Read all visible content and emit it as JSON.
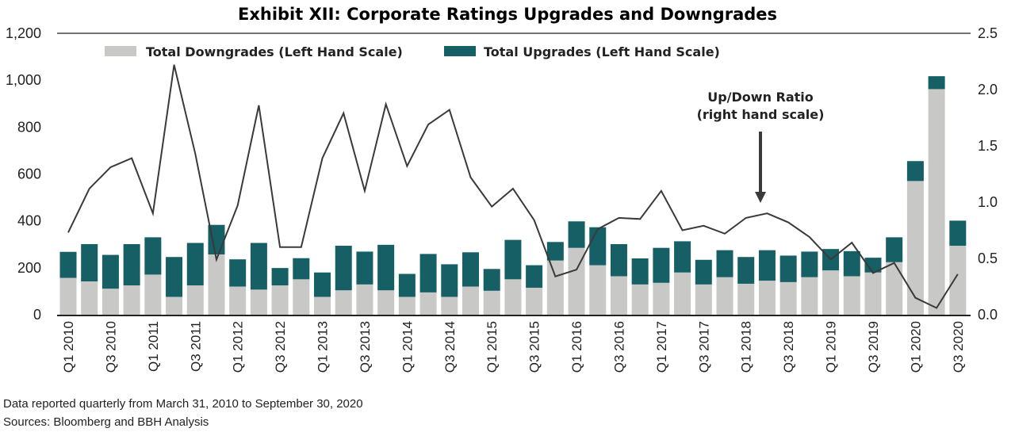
{
  "chart_data": {
    "type": "bar",
    "stacked": true,
    "title": "Exhibit XII: Corporate Ratings Upgrades and Downgrades",
    "categories": [
      "Q1 2010",
      "Q2 2010",
      "Q3 2010",
      "Q4 2010",
      "Q1 2011",
      "Q2 2011",
      "Q3 2011",
      "Q4 2011",
      "Q1 2012",
      "Q2 2012",
      "Q3 2012",
      "Q4 2012",
      "Q1 2013",
      "Q2 2013",
      "Q3 2013",
      "Q4 2013",
      "Q1 2014",
      "Q2 2014",
      "Q3 2014",
      "Q4 2014",
      "Q1 2015",
      "Q2 2015",
      "Q3 2015",
      "Q4 2015",
      "Q1 2016",
      "Q2 2016",
      "Q3 2016",
      "Q4 2016",
      "Q1 2017",
      "Q2 2017",
      "Q3 2017",
      "Q4 2017",
      "Q1 2018",
      "Q2 2018",
      "Q3 2018",
      "Q4 2018",
      "Q1 2019",
      "Q2 2019",
      "Q3 2019",
      "Q4 2019",
      "Q1 2020",
      "Q2 2020",
      "Q3 2020"
    ],
    "tick_labels": [
      "Q1 2010",
      "Q3 2010",
      "Q1 2011",
      "Q3 2011",
      "Q1 2012",
      "Q3 2012",
      "Q1 2013",
      "Q3 2013",
      "Q1 2014",
      "Q3 2014",
      "Q1 2015",
      "Q3 2015",
      "Q1 2016",
      "Q3 2016",
      "Q1 2017",
      "Q3 2017",
      "Q1 2018",
      "Q3 2018",
      "Q1 2019",
      "Q3 2019",
      "Q1 2020",
      "Q3 2020"
    ],
    "series": [
      {
        "name": "Total Downgrades (Left Hand Scale)",
        "axis": "left",
        "color": "#c8c8c6",
        "values": [
          157,
          142,
          111,
          125,
          171,
          76,
          125,
          257,
          120,
          107,
          125,
          151,
          76,
          104,
          129,
          104,
          76,
          95,
          76,
          120,
          102,
          151,
          115,
          231,
          285,
          211,
          164,
          129,
          136,
          180,
          129,
          160,
          132,
          145,
          139,
          160,
          189,
          164,
          180,
          224,
          570,
          962,
          294
        ]
      },
      {
        "name": "Total Upgrades (Left Hand Scale)",
        "axis": "left",
        "color": "#155f65",
        "values": [
          111,
          159,
          144,
          176,
          159,
          170,
          181,
          126,
          116,
          199,
          74,
          90,
          104,
          190,
          140,
          194,
          98,
          164,
          139,
          146,
          93,
          168,
          96,
          79,
          113,
          162,
          137,
          111,
          149,
          133,
          105,
          115,
          114,
          130,
          113,
          109,
          91,
          107,
          63,
          106,
          85,
          55,
          107
        ]
      },
      {
        "axis": "right",
        "type": "line",
        "color": "#3a3a3a",
        "values": [
          0.73,
          1.12,
          1.31,
          1.39,
          0.9,
          2.22,
          1.43,
          0.49,
          0.97,
          1.86,
          0.6,
          0.6,
          1.39,
          1.79,
          1.1,
          1.87,
          1.32,
          1.69,
          1.82,
          1.22,
          0.96,
          1.12,
          0.84,
          0.34,
          0.4,
          0.76,
          0.86,
          0.85,
          1.1,
          0.75,
          0.79,
          0.72,
          0.86,
          0.9,
          0.82,
          0.69,
          0.49,
          0.64,
          0.37,
          0.46,
          0.15,
          0.06,
          0.36
        ]
      }
    ],
    "y_left": {
      "range": [
        0,
        1200
      ],
      "ticks": [
        "0",
        "200",
        "400",
        "600",
        "800",
        "1,000",
        "1,200"
      ]
    },
    "y_right": {
      "range": [
        0,
        2.5
      ],
      "ticks": [
        "0.0",
        "0.5",
        "1.0",
        "1.5",
        "2.0",
        "2.5"
      ]
    },
    "annotation": {
      "line1": "Up/Down Ratio",
      "line2": "(right hand scale)"
    },
    "legend": "top",
    "grid": false
  },
  "notes": {
    "line1": "Data reported quarterly from March 31, 2010 to September 30, 2020",
    "line2": "Sources: Bloomberg and BBH Analysis"
  }
}
